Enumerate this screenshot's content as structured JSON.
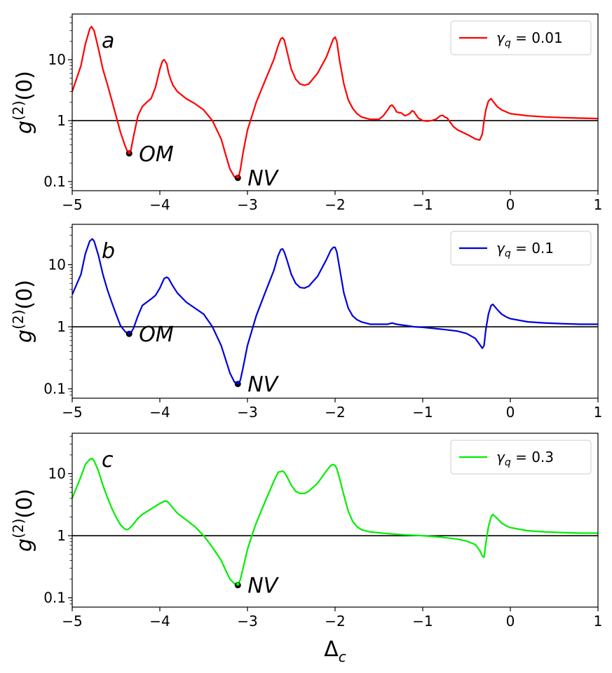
{
  "chart_data": [
    {
      "type": "line",
      "panel_label": "a",
      "ylabel": "g^(2)(0)",
      "xlabel": "",
      "xlim": [
        -5,
        1
      ],
      "ylim_log10": [
        -1.15,
        1.75
      ],
      "yscale": "log",
      "xticks": [
        -5,
        -4,
        -3,
        -2,
        -1,
        0,
        1
      ],
      "xtick_labels": [
        "−5",
        "−4",
        "−3",
        "−2",
        "−1",
        "0",
        "1"
      ],
      "yticks": [
        0.1,
        1,
        10
      ],
      "ytick_labels": [
        "0.1",
        "1",
        "10"
      ],
      "reference_line_y": 1,
      "legend": {
        "label": "γq = 0.01",
        "symbol": "γ",
        "subscript": "q",
        "value": " = 0.01",
        "placement": "top-right"
      },
      "color": "#ff0000",
      "series": [
        {
          "name": "γq = 0.01",
          "x": [
            -5.0,
            -4.9,
            -4.85,
            -4.8,
            -4.78,
            -4.75,
            -4.7,
            -4.65,
            -4.6,
            -4.55,
            -4.5,
            -4.45,
            -4.4,
            -4.37,
            -4.35,
            -4.33,
            -4.3,
            -4.25,
            -4.2,
            -4.15,
            -4.1,
            -4.05,
            -4.0,
            -3.97,
            -3.95,
            -3.92,
            -3.9,
            -3.87,
            -3.85,
            -3.8,
            -3.7,
            -3.6,
            -3.5,
            -3.4,
            -3.3,
            -3.25,
            -3.2,
            -3.15,
            -3.12,
            -3.1,
            -3.08,
            -3.05,
            -3.0,
            -2.9,
            -2.8,
            -2.7,
            -2.65,
            -2.62,
            -2.6,
            -2.58,
            -2.55,
            -2.5,
            -2.45,
            -2.4,
            -2.35,
            -2.3,
            -2.2,
            -2.1,
            -2.05,
            -2.02,
            -2.0,
            -1.98,
            -1.95,
            -1.9,
            -1.85,
            -1.8,
            -1.75,
            -1.7,
            -1.6,
            -1.5,
            -1.45,
            -1.4,
            -1.37,
            -1.35,
            -1.32,
            -1.3,
            -1.27,
            -1.25,
            -1.2,
            -1.15,
            -1.12,
            -1.1,
            -1.05,
            -1.0,
            -0.95,
            -0.9,
            -0.85,
            -0.8,
            -0.77,
            -0.75,
            -0.72,
            -0.7,
            -0.65,
            -0.6,
            -0.55,
            -0.5,
            -0.45,
            -0.4,
            -0.35,
            -0.32,
            -0.3,
            -0.28,
            -0.25,
            -0.22,
            -0.2,
            -0.15,
            -0.1,
            -0.05,
            0.0,
            0.1,
            0.2,
            0.4,
            0.6,
            0.8,
            1.0
          ],
          "y": [
            3.0,
            8.0,
            18.0,
            32.0,
            35.0,
            30.0,
            15.0,
            7.0,
            4.0,
            2.2,
            1.2,
            0.65,
            0.4,
            0.31,
            0.29,
            0.33,
            0.55,
            1.2,
            1.7,
            2.0,
            2.3,
            3.5,
            7.0,
            9.5,
            10.0,
            8.5,
            6.0,
            4.5,
            3.8,
            3.0,
            2.3,
            1.9,
            1.5,
            1.0,
            0.5,
            0.28,
            0.16,
            0.12,
            0.11,
            0.12,
            0.16,
            0.3,
            0.7,
            2.0,
            4.5,
            10.0,
            17.0,
            22.0,
            23.0,
            21.0,
            14.0,
            7.0,
            4.8,
            4.0,
            3.8,
            4.0,
            6.0,
            11.0,
            17.0,
            22.0,
            23.5,
            20.0,
            10.0,
            4.0,
            2.2,
            1.6,
            1.3,
            1.15,
            1.05,
            1.05,
            1.2,
            1.5,
            1.75,
            1.8,
            1.6,
            1.4,
            1.35,
            1.35,
            1.2,
            1.3,
            1.45,
            1.4,
            1.1,
            1.0,
            0.98,
            1.0,
            1.05,
            1.2,
            1.22,
            1.15,
            1.1,
            1.0,
            0.8,
            0.7,
            0.65,
            0.6,
            0.55,
            0.5,
            0.48,
            0.6,
            1.0,
            1.5,
            2.1,
            2.3,
            2.1,
            1.7,
            1.5,
            1.4,
            1.3,
            1.25,
            1.2,
            1.15,
            1.12,
            1.1,
            1.08
          ]
        }
      ],
      "annotations": [
        {
          "text": "OM",
          "x": -4.35,
          "y": 0.29
        },
        {
          "text": "NV",
          "x": -3.11,
          "y": 0.115
        }
      ]
    },
    {
      "type": "line",
      "panel_label": "b",
      "ylabel": "g^(2)(0)",
      "xlabel": "",
      "xlim": [
        -5,
        1
      ],
      "ylim_log10": [
        -1.15,
        1.65
      ],
      "yscale": "log",
      "xticks": [
        -5,
        -4,
        -3,
        -2,
        -1,
        0,
        1
      ],
      "xtick_labels": [
        "−5",
        "−4",
        "−3",
        "−2",
        "−1",
        "0",
        "1"
      ],
      "yticks": [
        0.1,
        1,
        10
      ],
      "ytick_labels": [
        "0.1",
        "1",
        "10"
      ],
      "reference_line_y": 1,
      "legend": {
        "label": "γq = 0.1",
        "symbol": "γ",
        "subscript": "q",
        "value": " = 0.1",
        "placement": "top-right"
      },
      "color": "#0000dd",
      "series": [
        {
          "name": "γq = 0.1",
          "x": [
            -5.0,
            -4.9,
            -4.85,
            -4.8,
            -4.77,
            -4.75,
            -4.7,
            -4.65,
            -4.6,
            -4.55,
            -4.5,
            -4.45,
            -4.4,
            -4.37,
            -4.35,
            -4.33,
            -4.3,
            -4.25,
            -4.2,
            -4.1,
            -4.05,
            -4.0,
            -3.95,
            -3.92,
            -3.9,
            -3.85,
            -3.8,
            -3.7,
            -3.6,
            -3.5,
            -3.4,
            -3.3,
            -3.25,
            -3.2,
            -3.15,
            -3.12,
            -3.1,
            -3.08,
            -3.05,
            -3.0,
            -2.9,
            -2.8,
            -2.7,
            -2.65,
            -2.62,
            -2.6,
            -2.58,
            -2.55,
            -2.5,
            -2.45,
            -2.4,
            -2.35,
            -2.3,
            -2.2,
            -2.1,
            -2.05,
            -2.02,
            -2.0,
            -1.98,
            -1.95,
            -1.9,
            -1.85,
            -1.8,
            -1.75,
            -1.7,
            -1.6,
            -1.5,
            -1.4,
            -1.35,
            -1.3,
            -1.2,
            -1.1,
            -1.0,
            -0.8,
            -0.6,
            -0.5,
            -0.4,
            -0.35,
            -0.32,
            -0.3,
            -0.28,
            -0.25,
            -0.22,
            -0.2,
            -0.15,
            -0.1,
            -0.05,
            0.0,
            0.2,
            0.4,
            0.6,
            0.8,
            1.0
          ],
          "y": [
            3.3,
            7.0,
            15.0,
            24.0,
            26.0,
            24.0,
            14.0,
            7.0,
            4.0,
            2.5,
            1.6,
            1.05,
            0.85,
            0.78,
            0.77,
            0.8,
            0.95,
            1.5,
            2.2,
            2.8,
            3.2,
            4.2,
            6.0,
            6.3,
            6.0,
            4.5,
            3.5,
            2.5,
            2.0,
            1.6,
            1.0,
            0.5,
            0.3,
            0.18,
            0.13,
            0.12,
            0.12,
            0.14,
            0.22,
            0.5,
            1.5,
            3.5,
            8.0,
            14.0,
            17.5,
            18.0,
            16.0,
            12.0,
            7.0,
            5.0,
            4.3,
            4.2,
            4.5,
            6.5,
            12.0,
            17.0,
            19.0,
            19.0,
            16.0,
            9.0,
            3.5,
            2.0,
            1.5,
            1.3,
            1.2,
            1.1,
            1.1,
            1.1,
            1.15,
            1.1,
            1.05,
            1.0,
            0.98,
            0.92,
            0.85,
            0.78,
            0.65,
            0.52,
            0.45,
            0.5,
            0.9,
            1.6,
            2.2,
            2.3,
            1.9,
            1.6,
            1.45,
            1.35,
            1.2,
            1.15,
            1.12,
            1.1,
            1.1
          ]
        }
      ],
      "annotations": [
        {
          "text": "OM",
          "x": -4.35,
          "y": 0.77
        },
        {
          "text": "NV",
          "x": -3.11,
          "y": 0.12
        }
      ]
    },
    {
      "type": "line",
      "panel_label": "c",
      "ylabel": "g^(2)(0)",
      "xlabel": "Δc",
      "xlim": [
        -5,
        1
      ],
      "ylim_log10": [
        -1.15,
        1.65
      ],
      "yscale": "log",
      "xticks": [
        -5,
        -4,
        -3,
        -2,
        -1,
        0,
        1
      ],
      "xtick_labels": [
        "−5",
        "−4",
        "−3",
        "−2",
        "−1",
        "0",
        "1"
      ],
      "yticks": [
        0.1,
        1,
        10
      ],
      "ytick_labels": [
        "0.1",
        "1",
        "10"
      ],
      "reference_line_y": 1,
      "legend": {
        "label": "γq = 0.3",
        "symbol": "γ",
        "subscript": "q",
        "value": " = 0.3",
        "placement": "top-right"
      },
      "color": "#00ee00",
      "series": [
        {
          "name": "γq = 0.3",
          "x": [
            -5.0,
            -4.95,
            -4.9,
            -4.85,
            -4.8,
            -4.77,
            -4.75,
            -4.7,
            -4.65,
            -4.6,
            -4.55,
            -4.5,
            -4.45,
            -4.4,
            -4.37,
            -4.35,
            -4.3,
            -4.25,
            -4.2,
            -4.1,
            -4.0,
            -3.95,
            -3.92,
            -3.9,
            -3.85,
            -3.8,
            -3.7,
            -3.6,
            -3.5,
            -3.4,
            -3.3,
            -3.25,
            -3.2,
            -3.15,
            -3.12,
            -3.1,
            -3.08,
            -3.05,
            -3.0,
            -2.95,
            -2.9,
            -2.8,
            -2.7,
            -2.65,
            -2.6,
            -2.58,
            -2.55,
            -2.5,
            -2.45,
            -2.4,
            -2.35,
            -2.3,
            -2.2,
            -2.1,
            -2.05,
            -2.02,
            -2.0,
            -1.98,
            -1.95,
            -1.9,
            -1.85,
            -1.8,
            -1.75,
            -1.7,
            -1.6,
            -1.4,
            -1.2,
            -1.0,
            -0.8,
            -0.6,
            -0.5,
            -0.4,
            -0.35,
            -0.32,
            -0.3,
            -0.28,
            -0.25,
            -0.22,
            -0.2,
            -0.15,
            -0.1,
            -0.05,
            0.0,
            0.2,
            0.4,
            0.6,
            0.8,
            1.0
          ],
          "y": [
            4.0,
            6.0,
            9.0,
            14.0,
            17.0,
            17.5,
            16.0,
            11.0,
            6.5,
            4.2,
            2.8,
            2.0,
            1.5,
            1.28,
            1.25,
            1.3,
            1.55,
            1.9,
            2.2,
            2.7,
            3.3,
            3.6,
            3.6,
            3.4,
            2.8,
            2.3,
            1.8,
            1.4,
            1.0,
            0.65,
            0.4,
            0.28,
            0.2,
            0.17,
            0.16,
            0.17,
            0.2,
            0.3,
            0.6,
            1.0,
            1.6,
            3.5,
            7.5,
            10.5,
            11.0,
            10.5,
            9.0,
            6.5,
            5.2,
            4.8,
            4.8,
            5.2,
            7.0,
            11.0,
            13.5,
            14.0,
            13.5,
            12.0,
            8.5,
            4.5,
            2.5,
            1.7,
            1.4,
            1.25,
            1.15,
            1.08,
            1.03,
            1.0,
            0.95,
            0.88,
            0.82,
            0.72,
            0.58,
            0.47,
            0.45,
            0.75,
            1.4,
            2.0,
            2.2,
            1.9,
            1.6,
            1.45,
            1.35,
            1.2,
            1.15,
            1.12,
            1.1,
            1.1
          ]
        }
      ],
      "annotations": [
        {
          "text": "NV",
          "x": -3.11,
          "y": 0.16
        }
      ]
    }
  ]
}
